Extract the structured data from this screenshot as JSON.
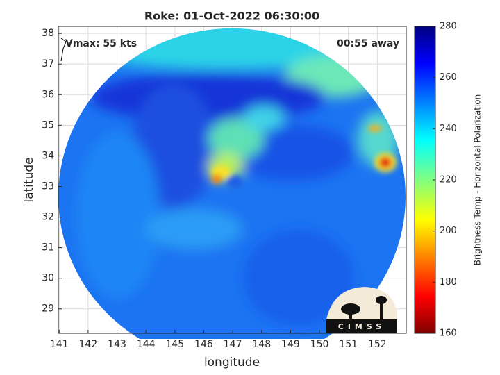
{
  "chart_data": {
    "type": "map",
    "title": "Roke: 01-Oct-2022 06:30:00",
    "xlabel": "longitude",
    "ylabel": "latitude",
    "xlim": [
      140.97,
      153.0
    ],
    "ylim": [
      28.2,
      38.23
    ],
    "xticks": [
      141,
      142,
      143,
      144,
      145,
      146,
      147,
      148,
      149,
      150,
      151,
      152
    ],
    "yticks": [
      29,
      30,
      31,
      32,
      33,
      34,
      35,
      36,
      37,
      38
    ],
    "grid": true,
    "annotations": [
      "Vmax: 55 kts",
      "00:55 away"
    ],
    "colorbar": {
      "label": "Brightness Temp - Horizontal Polarization",
      "lim": [
        160,
        280
      ],
      "ticks": [
        160,
        180,
        200,
        220,
        240,
        260,
        280
      ],
      "colormap": "jet reversed"
    },
    "logo": "CIMSS"
  }
}
